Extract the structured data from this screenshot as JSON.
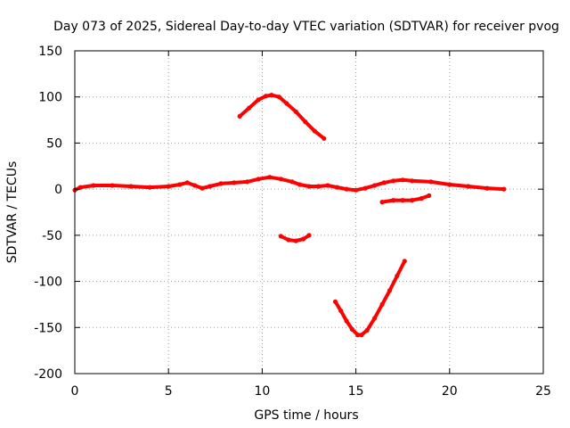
{
  "chart_data": {
    "type": "scatter",
    "title": "Day 073 of 2025, Sidereal Day-to-day VTEC variation (SDTVAR) for receiver pvog",
    "xlabel": "GPS time / hours",
    "ylabel": "SDTVAR / TECUs",
    "xlim": [
      0,
      25
    ],
    "ylim": [
      -200,
      150
    ],
    "grid": true,
    "x_ticks": [
      0,
      5,
      10,
      15,
      20,
      25
    ],
    "x_tick_labels": [
      "0",
      "5",
      "10",
      "15",
      "20",
      "25"
    ],
    "y_ticks": [
      150,
      100,
      50,
      0,
      -50,
      -100,
      -150,
      -200
    ],
    "y_tick_labels": [
      "150",
      "100",
      "50",
      "0",
      "-50",
      "-100",
      "-150",
      "-200"
    ],
    "marker_color": "#ff0000",
    "series": [
      {
        "name": "baseline",
        "x": [
          0,
          0.3,
          1.0,
          2.0,
          3.0,
          4.0,
          5.0,
          5.6,
          6.0,
          6.4,
          6.8,
          7.2,
          7.8,
          8.5,
          9.2,
          9.8,
          10.4,
          11.0,
          11.6,
          12.0,
          12.5,
          13.0,
          13.5,
          14.0,
          14.5,
          15.0,
          15.5,
          16.0,
          16.5,
          17.0,
          17.5,
          18.0,
          19.0,
          20.0,
          21.0,
          22.0,
          22.9
        ],
        "y": [
          -1,
          2,
          4,
          4,
          3,
          2,
          3,
          5,
          7,
          4,
          1,
          3,
          6,
          7,
          8,
          11,
          13,
          11,
          8,
          5,
          3,
          3,
          4,
          2,
          0,
          -1,
          1,
          4,
          7,
          9,
          10,
          9,
          8,
          5,
          3,
          1,
          0
        ]
      },
      {
        "name": "segment-peak",
        "x": [
          8.8,
          9.3,
          9.8,
          10.2,
          10.5,
          10.9,
          11.3,
          11.8,
          12.3,
          12.8,
          13.3
        ],
        "y": [
          79,
          88,
          97,
          101,
          102,
          100,
          93,
          84,
          73,
          63,
          55
        ]
      },
      {
        "name": "segment-mid-negative",
        "x": [
          11.0,
          11.4,
          11.8,
          12.2,
          12.5
        ],
        "y": [
          -51,
          -55,
          -56,
          -54,
          -50
        ]
      },
      {
        "name": "segment-trough",
        "x": [
          13.9,
          14.2,
          14.5,
          14.8,
          15.1,
          15.3,
          15.6,
          16.0,
          16.4,
          16.8,
          17.2,
          17.6
        ],
        "y": [
          -122,
          -132,
          -143,
          -152,
          -158,
          -158,
          -153,
          -140,
          -125,
          -110,
          -94,
          -78
        ]
      },
      {
        "name": "segment-late",
        "x": [
          16.4,
          17.0,
          17.5,
          18.0,
          18.5,
          18.9
        ],
        "y": [
          -14,
          -12,
          -12,
          -12,
          -10,
          -7
        ]
      }
    ]
  }
}
